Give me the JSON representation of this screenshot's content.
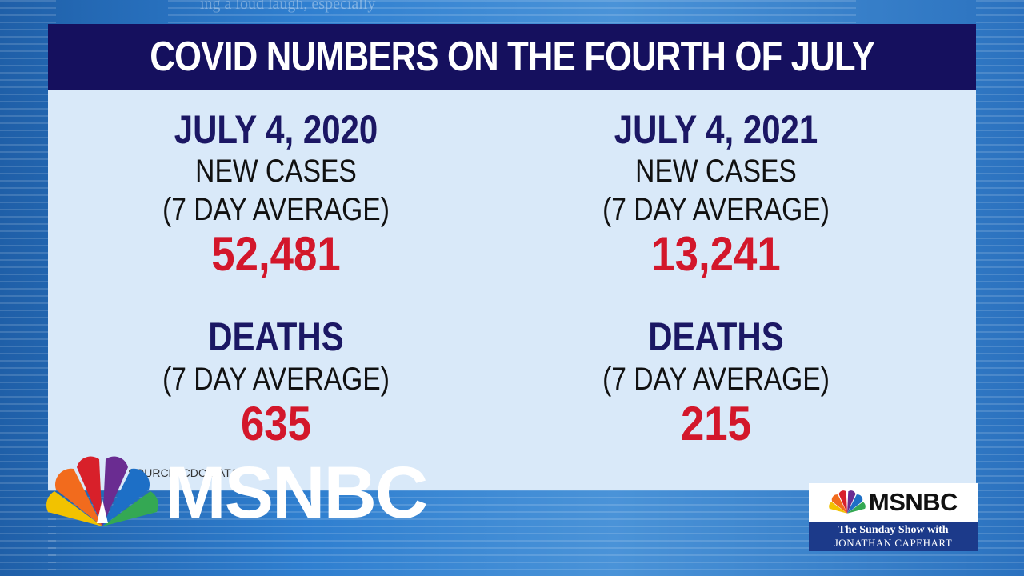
{
  "background": {
    "headline": "ing a loud laugh, especially"
  },
  "title": "COVID NUMBERS ON THE FOURTH OF JULY",
  "columns": [
    {
      "date": "JULY 4, 2020",
      "cases_label": "NEW CASES",
      "cases_sub": "(7 DAY AVERAGE)",
      "cases_value": "52,481",
      "deaths_label": "DEATHS",
      "deaths_sub": "(7 DAY AVERAGE)",
      "deaths_value": "635"
    },
    {
      "date": "JULY 4, 2021",
      "cases_label": "NEW CASES",
      "cases_sub": "(7 DAY AVERAGE)",
      "cases_value": "13,241",
      "deaths_label": "DEATHS",
      "deaths_sub": "(7 DAY AVERAGE)",
      "deaths_value": "215"
    }
  ],
  "source": "SOURCE: CDC DATA",
  "network_logo": "MSNBC",
  "show_bug": {
    "logo": "MSNBC",
    "line1": "The Sunday Show with",
    "line2": "JONATHAN CAPEHART"
  },
  "colors": {
    "title_bar": "#15105e",
    "heading": "#1b1764",
    "value": "#d3172b",
    "card": "#d9e9f9"
  },
  "icons": [
    "peacock-logo-icon"
  ]
}
